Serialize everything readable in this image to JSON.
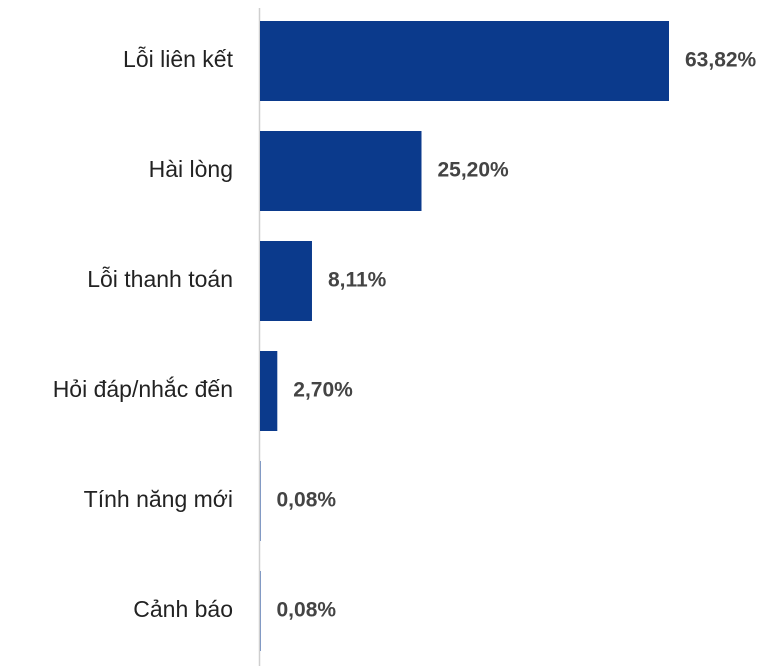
{
  "chart_data": {
    "type": "bar",
    "orientation": "horizontal",
    "categories": [
      "Lỗi liên kết",
      "Hài lòng",
      "Lỗi thanh toán",
      "Hỏi đáp/nhắc đến",
      "Tính năng mới",
      "Cảnh báo"
    ],
    "values": [
      63.82,
      25.2,
      8.11,
      2.7,
      0.08,
      0.08
    ],
    "value_labels": [
      "63,82%",
      "25,20%",
      "8,11%",
      "2,70%",
      "0,08%",
      "0,08%"
    ],
    "color": "#0b3a8c"
  }
}
